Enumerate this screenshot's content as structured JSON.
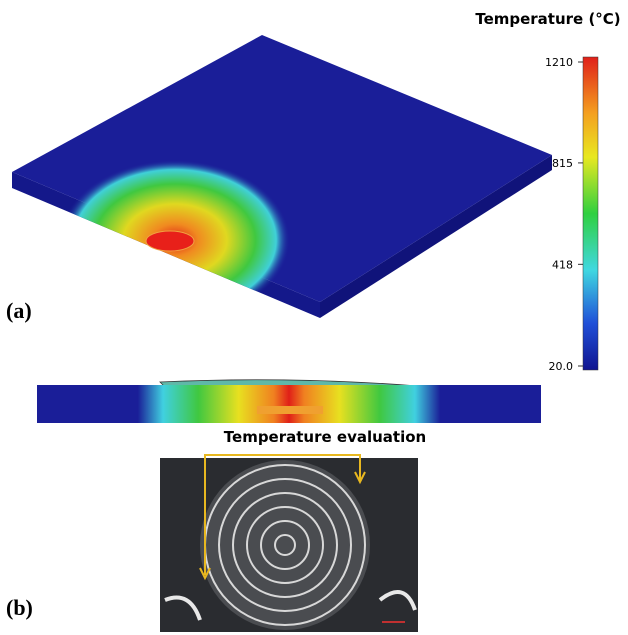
{
  "colorbar": {
    "title": "Temperature (°C)",
    "lim": [
      20,
      1210
    ],
    "ticks": [
      1210,
      815,
      418,
      {
        "value": 20,
        "label": "20.0"
      }
    ]
  },
  "panels": [
    {
      "label": "(a)"
    },
    {
      "label": "(b)"
    }
  ],
  "annotation": "Temperature evaluation"
}
